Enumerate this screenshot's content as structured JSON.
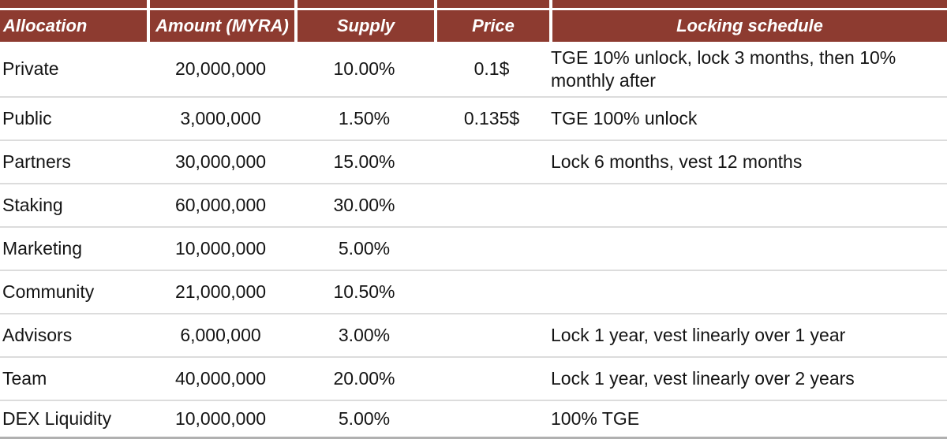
{
  "chart_data": {
    "type": "table",
    "title": "",
    "columns": [
      "Allocation",
      "Amount (MYRA)",
      "Supply",
      "Price",
      "Locking schedule"
    ],
    "rows": [
      [
        "Private",
        "20,000,000",
        "10.00%",
        "0.1$",
        "TGE 10% unlock, lock 3 months, then 10% monthly after"
      ],
      [
        "Public",
        "3,000,000",
        "1.50%",
        "0.135$",
        "TGE 100% unlock"
      ],
      [
        "Partners",
        "30,000,000",
        "15.00%",
        "",
        "Lock 6 months, vest 12 months"
      ],
      [
        "Staking",
        "60,000,000",
        "30.00%",
        "",
        ""
      ],
      [
        "Marketing",
        "10,000,000",
        "5.00%",
        "",
        ""
      ],
      [
        "Community",
        "21,000,000",
        "10.50%",
        "",
        ""
      ],
      [
        "Advisors",
        "6,000,000",
        "3.00%",
        "",
        "Lock 1 year, vest linearly over 1 year"
      ],
      [
        "Team",
        "40,000,000",
        "20.00%",
        "",
        "Lock 1 year, vest linearly over 2 years"
      ],
      [
        "DEX Liquidity",
        "10,000,000",
        "5.00%",
        "",
        "100% TGE"
      ]
    ]
  },
  "colors": {
    "header_bg": "#8D3B30",
    "header_text": "#FFFFFF",
    "body_text": "#141414",
    "row_divider": "#DCDCDC",
    "bottom_rule": "#B0B0B0"
  }
}
